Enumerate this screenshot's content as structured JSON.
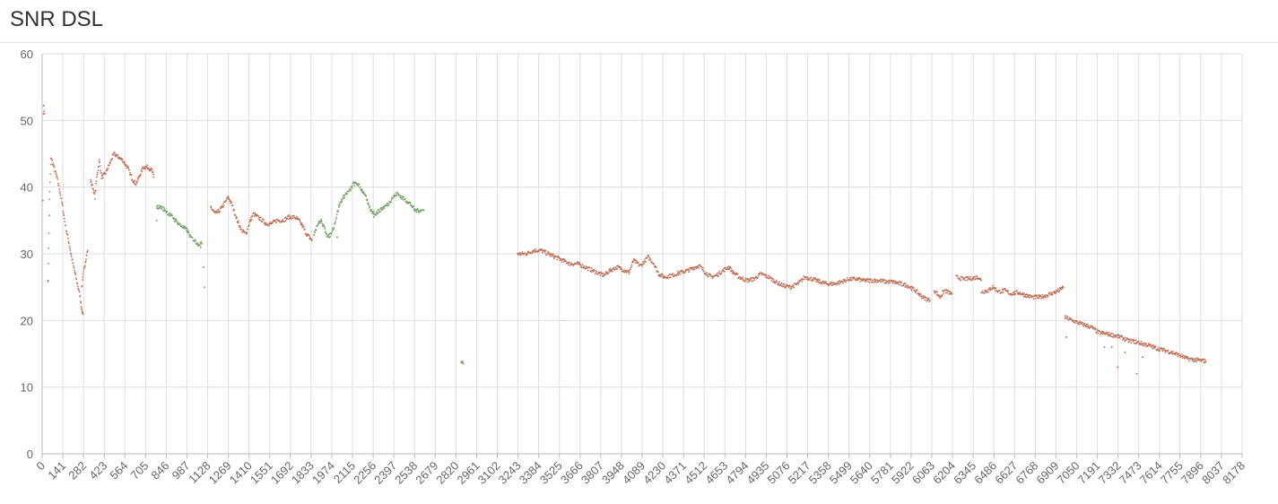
{
  "page": {
    "title": "SNR DSL"
  },
  "chart_data": {
    "type": "scatter",
    "title": "SNR DSL",
    "xlabel": "",
    "ylabel": "",
    "xlim": [
      0,
      8178
    ],
    "ylim": [
      0,
      60
    ],
    "grid": true,
    "legend": "none",
    "y_ticks": [
      0,
      10,
      20,
      30,
      40,
      50,
      60
    ],
    "x_ticks": [
      0,
      141,
      282,
      423,
      564,
      705,
      846,
      987,
      1128,
      1269,
      1410,
      1551,
      1692,
      1833,
      1974,
      2115,
      2256,
      2397,
      2538,
      2679,
      2820,
      2961,
      3102,
      3243,
      3384,
      3525,
      3666,
      3807,
      3948,
      4089,
      4230,
      4371,
      4512,
      4653,
      4794,
      4935,
      5076,
      5217,
      5358,
      5499,
      5640,
      5781,
      5922,
      6063,
      6204,
      6345,
      6486,
      6627,
      6768,
      6909,
      7050,
      7191,
      7332,
      7473,
      7614,
      7755,
      7896,
      8037,
      8178
    ],
    "colors": {
      "brown": "#c0735b",
      "green": "#7aa36d",
      "grid": "#dddddd",
      "axis": "#bbbbbb"
    },
    "series": [
      {
        "color": "brown",
        "segments": [
          [
            [
              10,
              52.5
            ],
            [
              15,
              51
            ]
          ],
          [
            [
              40,
              26
            ],
            [
              50,
              38
            ],
            [
              60,
              44.5
            ],
            [
              80,
              43
            ],
            [
              100,
              41.5
            ],
            [
              120,
              39.5
            ],
            [
              140,
              37
            ],
            [
              160,
              34
            ],
            [
              180,
              32
            ],
            [
              200,
              29.5
            ],
            [
              220,
              27.5
            ],
            [
              240,
              25.5
            ],
            [
              260,
              23.5
            ],
            [
              270,
              21.5
            ],
            [
              280,
              21
            ]
          ],
          [
            [
              270,
              25
            ],
            [
              285,
              27.5
            ],
            [
              300,
              29.5
            ],
            [
              310,
              30.5
            ]
          ],
          [
            [
              330,
              41
            ],
            [
              345,
              40
            ],
            [
              360,
              38.5
            ],
            [
              375,
              42
            ],
            [
              390,
              44
            ],
            [
              405,
              41.5
            ],
            [
              430,
              42
            ],
            [
              460,
              43.5
            ],
            [
              490,
              45
            ],
            [
              520,
              44.5
            ],
            [
              550,
              44
            ],
            [
              580,
              43
            ],
            [
              600,
              42
            ],
            [
              620,
              41
            ],
            [
              640,
              40.5
            ],
            [
              660,
              41.5
            ],
            [
              690,
              43
            ],
            [
              720,
              43
            ],
            [
              750,
              42.5
            ],
            [
              760,
              41.5
            ]
          ],
          [
            [
              1150,
              37
            ],
            [
              1180,
              36
            ],
            [
              1210,
              36.5
            ],
            [
              1240,
              37.5
            ],
            [
              1270,
              38.5
            ],
            [
              1300,
              37
            ],
            [
              1330,
              35
            ],
            [
              1360,
              33.5
            ],
            [
              1390,
              33
            ],
            [
              1410,
              34.5
            ],
            [
              1440,
              36
            ],
            [
              1470,
              35.5
            ],
            [
              1500,
              35
            ],
            [
              1530,
              34.5
            ],
            [
              1560,
              34.5
            ],
            [
              1600,
              35
            ],
            [
              1640,
              35
            ],
            [
              1680,
              35.5
            ],
            [
              1720,
              35.5
            ],
            [
              1750,
              35
            ],
            [
              1780,
              34
            ],
            [
              1800,
              33
            ],
            [
              1820,
              32.5
            ],
            [
              1840,
              32
            ]
          ],
          [
            [
              3240,
              30
            ],
            [
              3300,
              30
            ],
            [
              3350,
              30.5
            ],
            [
              3400,
              30.5
            ],
            [
              3450,
              30
            ],
            [
              3500,
              29.5
            ],
            [
              3550,
              29
            ],
            [
              3600,
              28.5
            ],
            [
              3650,
              28.5
            ],
            [
              3700,
              28
            ],
            [
              3750,
              27.5
            ],
            [
              3800,
              27
            ],
            [
              3830,
              26.8
            ],
            [
              3870,
              27.5
            ],
            [
              3920,
              28
            ],
            [
              3970,
              27.5
            ],
            [
              4000,
              27.2
            ],
            [
              4030,
              29
            ],
            [
              4080,
              28.2
            ],
            [
              4130,
              29.5
            ],
            [
              4170,
              28.5
            ],
            [
              4200,
              27
            ],
            [
              4240,
              26.5
            ],
            [
              4300,
              26.8
            ],
            [
              4350,
              27.2
            ],
            [
              4400,
              27.5
            ],
            [
              4450,
              28
            ],
            [
              4480,
              28.2
            ],
            [
              4520,
              27.2
            ],
            [
              4560,
              26.5
            ],
            [
              4600,
              26.8
            ],
            [
              4640,
              27.5
            ],
            [
              4680,
              28
            ],
            [
              4710,
              27.2
            ],
            [
              4750,
              26.5
            ],
            [
              4800,
              26
            ],
            [
              4850,
              26.2
            ],
            [
              4900,
              27
            ],
            [
              4950,
              26.5
            ],
            [
              5000,
              25.8
            ],
            [
              5050,
              25.2
            ],
            [
              5100,
              25
            ],
            [
              5150,
              25.5
            ],
            [
              5200,
              26.5
            ],
            [
              5250,
              26.2
            ],
            [
              5300,
              25.8
            ],
            [
              5350,
              25.5
            ],
            [
              5400,
              25.5
            ],
            [
              5450,
              25.8
            ],
            [
              5500,
              26.2
            ],
            [
              5550,
              26.2
            ],
            [
              5600,
              26
            ],
            [
              5650,
              26
            ],
            [
              5700,
              26
            ],
            [
              5750,
              25.8
            ],
            [
              5800,
              25.8
            ],
            [
              5850,
              25.5
            ],
            [
              5900,
              25.2
            ],
            [
              5950,
              24.5
            ],
            [
              6000,
              23.5
            ],
            [
              6050,
              23
            ]
          ],
          [
            [
              6080,
              24.5
            ],
            [
              6120,
              23.5
            ],
            [
              6150,
              24.5
            ],
            [
              6200,
              24
            ]
          ],
          [
            [
              6230,
              26.5
            ],
            [
              6280,
              26.2
            ],
            [
              6330,
              26.3
            ],
            [
              6380,
              26.5
            ],
            [
              6400,
              26
            ]
          ],
          [
            [
              6400,
              24.3
            ],
            [
              6450,
              24.5
            ],
            [
              6480,
              25
            ],
            [
              6520,
              24.3
            ],
            [
              6560,
              24.5
            ],
            [
              6600,
              24
            ],
            [
              6650,
              24.2
            ],
            [
              6700,
              23.8
            ],
            [
              6750,
              23.5
            ],
            [
              6800,
              23.5
            ],
            [
              6850,
              23.8
            ],
            [
              6900,
              24.2
            ],
            [
              6930,
              24.5
            ],
            [
              6960,
              25
            ]
          ],
          [
            [
              6970,
              20.5
            ],
            [
              7020,
              20
            ],
            [
              7080,
              19.5
            ],
            [
              7150,
              19
            ],
            [
              7200,
              18.2
            ],
            [
              7250,
              18
            ],
            [
              7300,
              17.8
            ],
            [
              7350,
              17.5
            ],
            [
              7400,
              17
            ],
            [
              7450,
              16.8
            ],
            [
              7500,
              16.5
            ],
            [
              7550,
              16.2
            ],
            [
              7600,
              15.8
            ],
            [
              7650,
              15.5
            ],
            [
              7700,
              15.2
            ],
            [
              7750,
              14.8
            ],
            [
              7800,
              14.3
            ],
            [
              7850,
              14.1
            ],
            [
              7900,
              14
            ],
            [
              7930,
              13.9
            ]
          ]
        ],
        "points": [
          [
            5,
            38
          ],
          [
            10,
            51
          ],
          [
            40,
            26
          ],
          [
            6980,
            17.5
          ],
          [
            7240,
            16
          ],
          [
            7290,
            16
          ],
          [
            7330,
            13
          ],
          [
            7380,
            15.2
          ],
          [
            7460,
            12
          ],
          [
            7500,
            14.5
          ]
        ]
      },
      {
        "color": "green",
        "segments": [
          [
            [
              780,
              37
            ],
            [
              810,
              37
            ],
            [
              840,
              36.5
            ],
            [
              860,
              36
            ],
            [
              890,
              35.5
            ],
            [
              910,
              35
            ],
            [
              930,
              34.5
            ],
            [
              960,
              34
            ],
            [
              990,
              33.5
            ],
            [
              1010,
              32.5
            ],
            [
              1040,
              32
            ],
            [
              1060,
              31.5
            ],
            [
              1090,
              31.5
            ]
          ],
          [
            [
              1850,
              33
            ],
            [
              1880,
              34.5
            ],
            [
              1900,
              35
            ],
            [
              1930,
              33.5
            ],
            [
              1950,
              32.5
            ],
            [
              1970,
              33
            ],
            [
              2000,
              35
            ],
            [
              2020,
              37
            ],
            [
              2040,
              38
            ],
            [
              2070,
              39
            ],
            [
              2100,
              39.5
            ],
            [
              2120,
              40.5
            ],
            [
              2150,
              40.5
            ],
            [
              2180,
              39.5
            ],
            [
              2200,
              39
            ],
            [
              2220,
              37.5
            ],
            [
              2240,
              36.5
            ],
            [
              2270,
              36
            ],
            [
              2300,
              36.5
            ],
            [
              2330,
              37
            ],
            [
              2360,
              37.5
            ],
            [
              2390,
              38.5
            ],
            [
              2420,
              39
            ],
            [
              2450,
              38.5
            ],
            [
              2480,
              38
            ],
            [
              2510,
              37.5
            ],
            [
              2540,
              36.5
            ],
            [
              2570,
              36.5
            ],
            [
              2600,
              36.5
            ]
          ],
          [
            [
              2855,
              14
            ],
            [
              2870,
              13.5
            ]
          ]
        ],
        "points": [
          [
            780,
            35
          ],
          [
            1080,
            31
          ],
          [
            1100,
            28
          ],
          [
            1105,
            25
          ],
          [
            2010,
            32.5
          ],
          [
            2260,
            35.5
          ]
        ]
      }
    ]
  }
}
